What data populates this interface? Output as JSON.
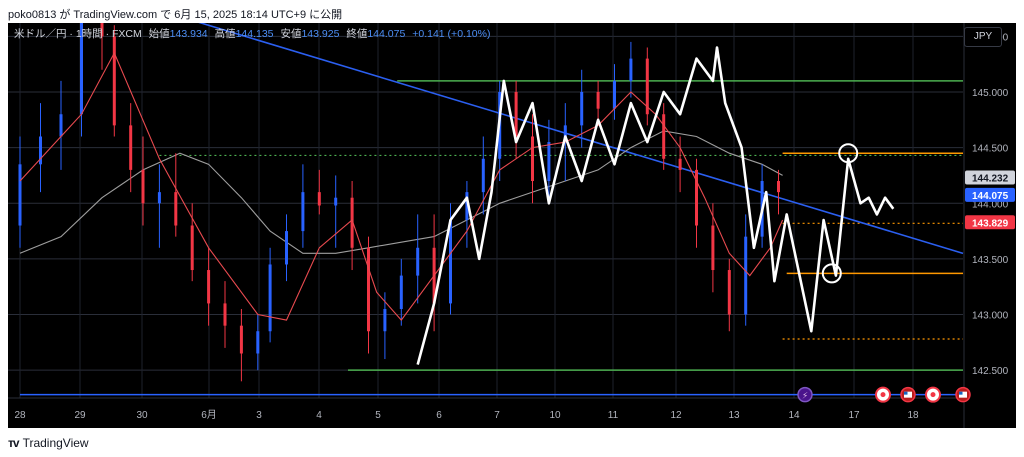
{
  "header": {
    "published_line": "poko0813 が TradingView.com で 6月 15, 2025 18:14 UTC+9 に公開"
  },
  "symbol_bar": {
    "symbol": "米ドル／円 · 1時間 · FXCM",
    "open_label": "始値",
    "open_value": "143.934",
    "high_label": "高値",
    "high_value": "144.135",
    "low_label": "安値",
    "low_value": "143.925",
    "close_label": "終値",
    "close_value": "144.075",
    "change": "+0.141 (+0.10%)"
  },
  "currency_button": "JPY",
  "footer": {
    "brand": "TradingView"
  },
  "colors": {
    "background": "#000000",
    "candle_up": "#2962ff",
    "candle_down": "#f23645",
    "ma_fast": "#e84a4f",
    "ma_slow": "#9e9e9e",
    "trendline": "#2b5ff0",
    "support_green": "#4caf50",
    "level_orange": "#ff9800",
    "hand_drawn": "#ffffff"
  },
  "chart_data": {
    "type": "candlestick",
    "symbol": "USDJPY",
    "timeframe": "1時間",
    "x_ticks": [
      "28",
      "29",
      "30",
      "6月",
      "3",
      "4",
      "5",
      "6",
      "7",
      "10",
      "11",
      "12",
      "13",
      "14",
      "17",
      "18"
    ],
    "y_ticks": [
      "145.500",
      "145.000",
      "144.500",
      "144.000",
      "143.500",
      "143.000",
      "142.500"
    ],
    "y_range": [
      142.25,
      145.62
    ],
    "price_labels": [
      {
        "value": "144.232",
        "style": "gray"
      },
      {
        "value": "144.075",
        "style": "blue"
      },
      {
        "value": "143.829",
        "style": "red"
      }
    ],
    "candles": [
      [
        0,
        143.8,
        144.6,
        143.6,
        144.35
      ],
      [
        0.5,
        144.35,
        144.9,
        144.1,
        144.6
      ],
      [
        1.0,
        144.6,
        145.1,
        144.3,
        144.8
      ],
      [
        1.5,
        144.8,
        145.95,
        144.6,
        145.75
      ],
      [
        2.0,
        145.75,
        146.1,
        145.2,
        145.5
      ],
      [
        2.3,
        145.5,
        145.6,
        144.6,
        144.7
      ],
      [
        2.7,
        144.7,
        144.9,
        144.1,
        144.3
      ],
      [
        3.0,
        144.3,
        144.6,
        143.8,
        144.0
      ],
      [
        3.4,
        144.0,
        144.35,
        143.6,
        144.1
      ],
      [
        3.8,
        144.1,
        144.45,
        143.7,
        143.8
      ],
      [
        4.2,
        143.8,
        144.0,
        143.3,
        143.4
      ],
      [
        4.6,
        143.4,
        143.6,
        142.9,
        143.1
      ],
      [
        5.0,
        143.1,
        143.3,
        142.7,
        142.9
      ],
      [
        5.4,
        142.9,
        143.05,
        142.4,
        142.65
      ],
      [
        5.8,
        142.65,
        143.0,
        142.5,
        142.85
      ],
      [
        6.1,
        142.85,
        143.6,
        142.75,
        143.45
      ],
      [
        6.5,
        143.45,
        143.9,
        143.3,
        143.75
      ],
      [
        6.9,
        143.75,
        144.35,
        143.6,
        144.1
      ],
      [
        7.3,
        144.1,
        144.3,
        143.9,
        143.98
      ],
      [
        7.7,
        143.98,
        144.25,
        143.6,
        144.05
      ],
      [
        8.1,
        144.05,
        144.2,
        143.4,
        143.6
      ],
      [
        8.5,
        143.6,
        143.7,
        142.65,
        142.85
      ],
      [
        8.9,
        142.85,
        143.2,
        142.6,
        143.05
      ],
      [
        9.3,
        143.05,
        143.5,
        142.9,
        143.35
      ],
      [
        9.7,
        143.35,
        143.9,
        143.1,
        143.6
      ],
      [
        10.1,
        143.6,
        143.9,
        142.85,
        143.1
      ],
      [
        10.5,
        143.1,
        144.0,
        143.0,
        143.85
      ],
      [
        10.9,
        143.85,
        144.2,
        143.6,
        144.1
      ],
      [
        11.3,
        144.1,
        144.6,
        143.9,
        144.4
      ],
      [
        11.7,
        144.4,
        145.1,
        144.2,
        145.0
      ],
      [
        12.1,
        145.0,
        145.1,
        144.4,
        144.6
      ],
      [
        12.5,
        144.6,
        144.8,
        144.0,
        144.2
      ],
      [
        12.9,
        144.2,
        144.75,
        144.0,
        144.55
      ],
      [
        13.3,
        144.55,
        144.9,
        144.2,
        144.7
      ],
      [
        13.7,
        144.7,
        145.2,
        144.5,
        145.0
      ],
      [
        14.1,
        145.0,
        145.1,
        144.7,
        144.85
      ],
      [
        14.5,
        144.85,
        145.25,
        144.75,
        145.1
      ],
      [
        14.9,
        145.1,
        145.45,
        144.95,
        145.3
      ],
      [
        15.3,
        145.3,
        145.4,
        144.7,
        144.8
      ],
      [
        15.7,
        144.8,
        144.9,
        144.3,
        144.4
      ],
      [
        16.1,
        144.4,
        144.6,
        144.1,
        144.3
      ],
      [
        16.5,
        144.3,
        144.4,
        143.6,
        143.8
      ],
      [
        16.9,
        143.8,
        144.0,
        143.2,
        143.4
      ],
      [
        17.3,
        143.4,
        143.5,
        142.85,
        143.0
      ],
      [
        17.7,
        143.0,
        143.9,
        142.9,
        143.7
      ],
      [
        18.1,
        143.7,
        144.35,
        143.6,
        144.2
      ],
      [
        18.5,
        144.2,
        144.3,
        143.9,
        144.1
      ]
    ],
    "ma_fast": [
      [
        0,
        144.2
      ],
      [
        1.5,
        144.8
      ],
      [
        2.3,
        145.35
      ],
      [
        3.4,
        144.4
      ],
      [
        4.6,
        143.6
      ],
      [
        5.8,
        143.0
      ],
      [
        6.5,
        142.95
      ],
      [
        7.3,
        143.6
      ],
      [
        8.1,
        143.85
      ],
      [
        8.7,
        143.2
      ],
      [
        9.3,
        142.95
      ],
      [
        10.1,
        143.35
      ],
      [
        10.9,
        143.75
      ],
      [
        11.7,
        144.3
      ],
      [
        12.5,
        144.5
      ],
      [
        13.3,
        144.55
      ],
      [
        14.1,
        144.7
      ],
      [
        14.9,
        145.0
      ],
      [
        15.5,
        144.8
      ],
      [
        16.1,
        144.5
      ],
      [
        16.7,
        144.05
      ],
      [
        17.3,
        143.55
      ],
      [
        17.8,
        143.35
      ],
      [
        18.3,
        143.6
      ],
      [
        18.6,
        143.85
      ]
    ],
    "ma_slow": [
      [
        0,
        143.55
      ],
      [
        1.0,
        143.7
      ],
      [
        2.0,
        144.05
      ],
      [
        3.0,
        144.3
      ],
      [
        3.9,
        144.45
      ],
      [
        4.6,
        144.35
      ],
      [
        5.4,
        144.05
      ],
      [
        6.1,
        143.75
      ],
      [
        6.9,
        143.55
      ],
      [
        7.7,
        143.55
      ],
      [
        8.5,
        143.6
      ],
      [
        9.3,
        143.65
      ],
      [
        10.1,
        143.7
      ],
      [
        10.9,
        143.85
      ],
      [
        11.7,
        144.0
      ],
      [
        12.5,
        144.1
      ],
      [
        13.3,
        144.2
      ],
      [
        14.1,
        144.3
      ],
      [
        14.9,
        144.5
      ],
      [
        15.7,
        144.65
      ],
      [
        16.5,
        144.6
      ],
      [
        17.3,
        144.45
      ],
      [
        18.1,
        144.35
      ],
      [
        18.6,
        144.25
      ]
    ],
    "trendline": [
      [
        2.8,
        145.8
      ],
      [
        23,
        143.55
      ]
    ],
    "horizontal_levels": [
      {
        "name": "green_upper",
        "value": 145.1,
        "from": 9.2,
        "to": 23,
        "style": "solid",
        "color": "#4caf50"
      },
      {
        "name": "green_lower",
        "value": 142.5,
        "from": 8.0,
        "to": 23,
        "style": "solid",
        "color": "#4caf50"
      },
      {
        "name": "dotted_green",
        "value": 144.43,
        "from": 3.4,
        "to": 23,
        "style": "dotted",
        "color": "#4caf50"
      },
      {
        "name": "orange_top",
        "value": 144.45,
        "from": 18.6,
        "to": 23,
        "style": "solid",
        "color": "#ff9800"
      },
      {
        "name": "orange_dot_mid",
        "value": 143.82,
        "from": 18.6,
        "to": 23,
        "style": "dotted",
        "color": "#ff9800"
      },
      {
        "name": "orange_bottom",
        "value": 143.37,
        "from": 18.7,
        "to": 23,
        "style": "solid",
        "color": "#ff9800"
      },
      {
        "name": "orange_dot_low",
        "value": 142.78,
        "from": 18.6,
        "to": 23,
        "style": "dotted",
        "color": "#ff9800"
      },
      {
        "name": "blue_base",
        "value": 142.28,
        "from": 0,
        "to": 23,
        "style": "solid",
        "color": "#2962ff"
      }
    ],
    "hand_drawn_path": [
      [
        9.7,
        142.55
      ],
      [
        10.1,
        143.1
      ],
      [
        10.5,
        143.85
      ],
      [
        10.9,
        144.05
      ],
      [
        11.2,
        143.5
      ],
      [
        11.5,
        144.1
      ],
      [
        11.8,
        145.1
      ],
      [
        12.1,
        144.55
      ],
      [
        12.5,
        144.9
      ],
      [
        12.9,
        144.0
      ],
      [
        13.3,
        144.6
      ],
      [
        13.7,
        144.2
      ],
      [
        14.1,
        144.75
      ],
      [
        14.5,
        144.35
      ],
      [
        14.9,
        144.9
      ],
      [
        15.3,
        144.55
      ],
      [
        15.7,
        145.0
      ],
      [
        16.1,
        144.8
      ],
      [
        16.5,
        145.3
      ],
      [
        16.9,
        145.1
      ],
      [
        17.0,
        145.4
      ],
      [
        17.2,
        144.9
      ],
      [
        17.6,
        144.5
      ],
      [
        17.9,
        143.6
      ],
      [
        18.2,
        144.1
      ],
      [
        18.4,
        143.3
      ],
      [
        18.7,
        143.9
      ],
      [
        19.1,
        143.2
      ],
      [
        19.3,
        142.85
      ],
      [
        19.6,
        143.85
      ],
      [
        19.9,
        143.35
      ],
      [
        20.2,
        144.4
      ],
      [
        20.5,
        144.0
      ],
      [
        20.7,
        144.05
      ],
      [
        20.9,
        143.9
      ],
      [
        21.1,
        144.05
      ],
      [
        21.3,
        143.95
      ]
    ],
    "circles": [
      [
        20.2,
        144.45
      ],
      [
        19.8,
        143.37
      ]
    ],
    "event_markers": [
      "lightning",
      "flag-us",
      "flag-us"
    ]
  }
}
